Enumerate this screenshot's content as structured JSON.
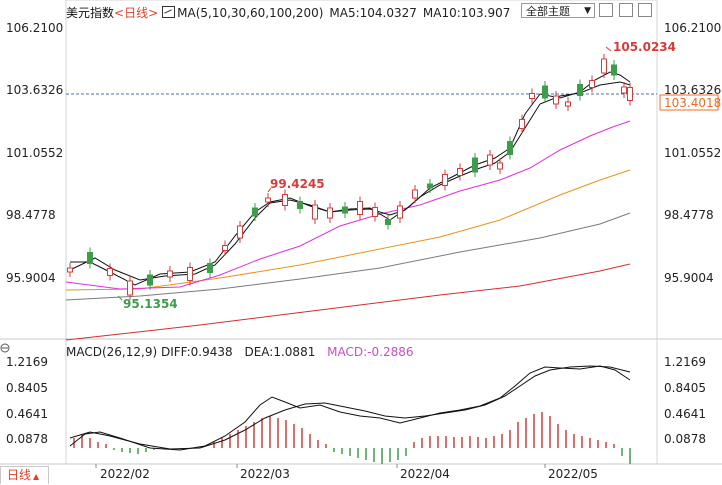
{
  "header": {
    "title": "美元指数",
    "timeframe": "<日线>",
    "ma_settings": "MA(5,10,30,60,100,200)",
    "ma5": "MA5:104.0327",
    "ma10": "MA10:103.907",
    "theme_label": "全部主题",
    "theme_arrow": "▼"
  },
  "price_axis": [
    "106.2100",
    "103.6326",
    "101.0552",
    "98.4778",
    "95.9004"
  ],
  "current_price": "103.4018",
  "annotations": {
    "high": "105.0234",
    "peak_mid": "99.4245",
    "low": "95.1354"
  },
  "macd": {
    "legend": "MACD(26,12,9)",
    "diff": "DIFF:0.9438",
    "dea": "DEA:1.0881",
    "macd": "MACD:-0.2886",
    "axis": [
      "1.2169",
      "0.8405",
      "0.4641",
      "0.0878"
    ]
  },
  "x_axis": [
    "2022/02",
    "2022/03",
    "2022/04",
    "2022/05"
  ],
  "bottom_tab": {
    "label": "日线",
    "caret": "▲"
  },
  "colors": {
    "up": "#d93b3b",
    "down": "#3e9c4a",
    "ma_magenta": "#e030e0",
    "ma_orange": "#e8941c",
    "ma_gray": "#7b7b7b",
    "ma_red": "#d03030",
    "current_price_box": "#f26b21"
  }
}
